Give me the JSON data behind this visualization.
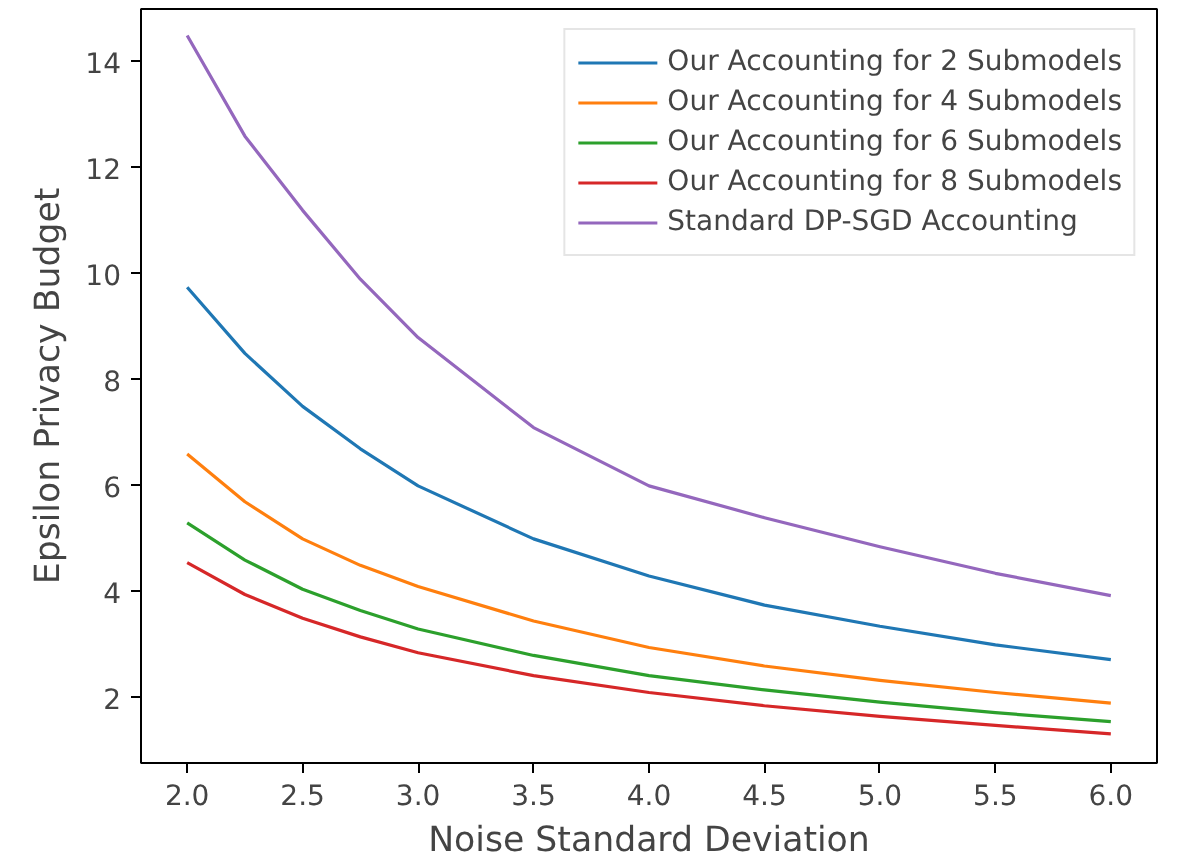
{
  "chart_data": {
    "type": "line",
    "xlabel": "Noise Standard Deviation",
    "ylabel": "Epsilon Privacy Budget",
    "x": [
      2.0,
      2.25,
      2.5,
      2.75,
      3.0,
      3.5,
      4.0,
      4.5,
      5.0,
      5.5,
      6.0
    ],
    "series": [
      {
        "name": "Our Accounting for 2 Submodels",
        "color": "#1f77b4",
        "values": [
          9.75,
          8.5,
          7.5,
          6.7,
          6.0,
          5.0,
          4.3,
          3.75,
          3.35,
          3.0,
          2.72
        ]
      },
      {
        "name": "Our Accounting for 4 Submodels",
        "color": "#ff7f0e",
        "values": [
          6.6,
          5.7,
          5.0,
          4.5,
          4.1,
          3.45,
          2.95,
          2.6,
          2.33,
          2.1,
          1.9
        ]
      },
      {
        "name": "Our Accounting for 6 Submodels",
        "color": "#2ca02c",
        "values": [
          5.3,
          4.6,
          4.05,
          3.65,
          3.3,
          2.8,
          2.42,
          2.15,
          1.92,
          1.72,
          1.55
        ]
      },
      {
        "name": "Our Accounting for 8 Submodels",
        "color": "#d62728",
        "values": [
          4.55,
          3.95,
          3.5,
          3.15,
          2.85,
          2.42,
          2.1,
          1.85,
          1.65,
          1.48,
          1.32
        ]
      },
      {
        "name": "Standard DP-SGD Accounting",
        "color": "#9467bd",
        "values": [
          14.5,
          12.6,
          11.2,
          9.9,
          8.8,
          7.1,
          6.0,
          5.4,
          4.85,
          4.35,
          3.93
        ]
      }
    ],
    "xlim": [
      1.8,
      6.2
    ],
    "ylim": [
      0.77,
      15.0
    ],
    "xticks": [
      {
        "value": 2,
        "label": "2.0"
      },
      {
        "value": 2.5,
        "label": "2.5"
      },
      {
        "value": 3,
        "label": "3.0"
      },
      {
        "value": 3.5,
        "label": "3.5"
      },
      {
        "value": 4,
        "label": "4.0"
      },
      {
        "value": 4.5,
        "label": "4.5"
      },
      {
        "value": 5,
        "label": "5.0"
      },
      {
        "value": 5.5,
        "label": "5.5"
      },
      {
        "value": 6,
        "label": "6.0"
      }
    ],
    "yticks": [
      2,
      4,
      6,
      8,
      10,
      12,
      14
    ],
    "legend": "top right",
    "grid": false,
    "marker": "none",
    "line_style": "solid"
  }
}
